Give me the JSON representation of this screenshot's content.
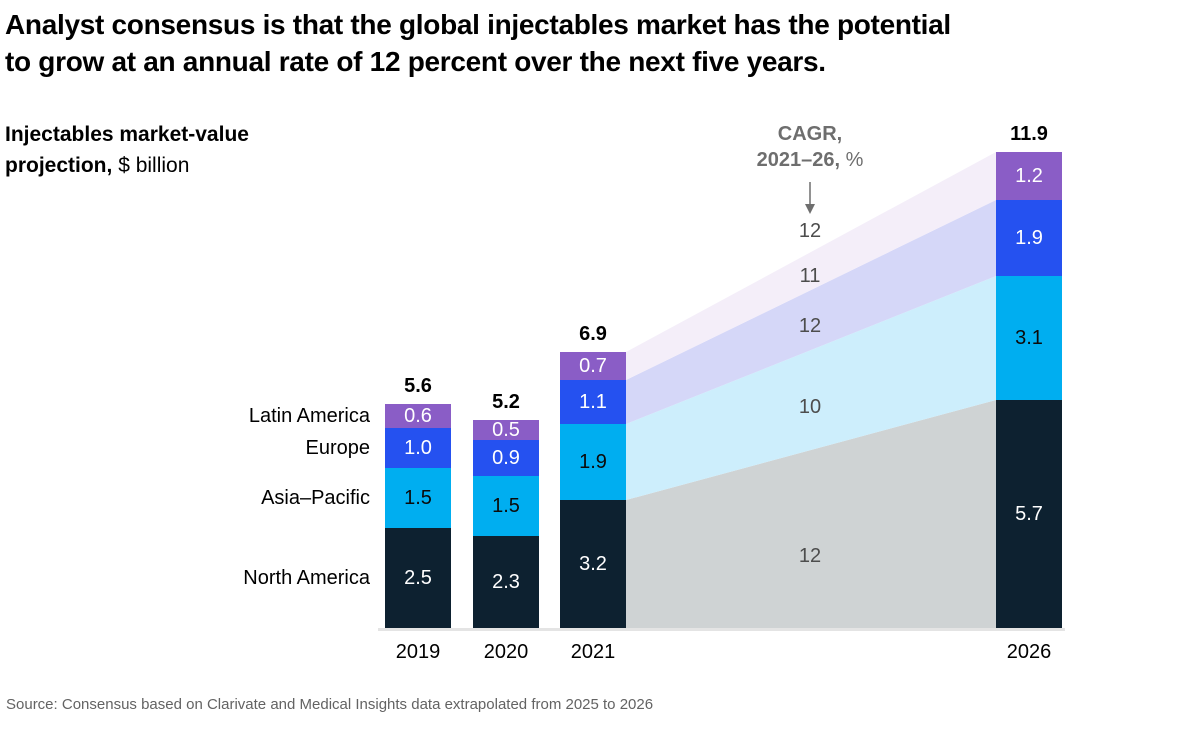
{
  "title": {
    "line1": "Analyst consensus is that the global injectables market has the potential",
    "line2": "to grow at an annual rate of 12 percent over the next five years."
  },
  "subtitle": {
    "bold": "Injectables market-value projection,",
    "regular": "$ billion"
  },
  "chart_data": {
    "type": "bar",
    "stacked": true,
    "unit": "$ billion",
    "title": "Injectables market-value projection, $ billion",
    "categories": [
      "2019",
      "2020",
      "2021",
      "2026"
    ],
    "series": [
      {
        "name": "North America",
        "values": [
          2.5,
          2.3,
          3.2,
          5.7
        ],
        "color": "#0d2130",
        "band_color": "#cfd3d4",
        "label_color": "#ffffff",
        "cagr": "12"
      },
      {
        "name": "Asia–Pacific",
        "values": [
          1.5,
          1.5,
          1.9,
          3.1
        ],
        "color": "#00aef0",
        "band_color": "#cdeefc",
        "label_color": "#0b0b0b",
        "cagr": "10"
      },
      {
        "name": "Europe",
        "values": [
          1.0,
          0.9,
          1.1,
          1.9
        ],
        "color": "#2551f0",
        "band_color": "#d5d7f8",
        "label_color": "#ffffff",
        "cagr": "12"
      },
      {
        "name": "Latin America",
        "values": [
          0.6,
          0.5,
          0.7,
          1.2
        ],
        "color": "#8a5dc6",
        "band_color": "#f4eef9",
        "label_color": "#ffffff",
        "cagr": "11"
      }
    ],
    "totals": [
      5.6,
      5.2,
      6.9,
      11.9
    ],
    "cagr_annotation": {
      "line1": "CAGR,",
      "line2_bold": "2021–26,",
      "line2_unit": "%",
      "total": "12"
    },
    "fan": {
      "from": "2021",
      "to": "2026"
    },
    "ylim": [
      0,
      12
    ],
    "grid": false,
    "legend_position": "left-of-first-bar"
  },
  "source": "Source: Consensus based on Clarivate and Medical Insights data extrapolated from 2025 to 2026"
}
